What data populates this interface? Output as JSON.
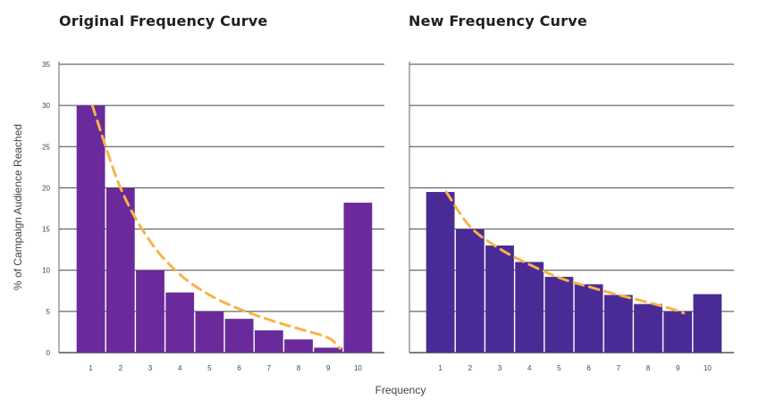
{
  "axes": {
    "ylabel": "% of Campaign Audience Reached",
    "xlabel": "Frequency"
  },
  "chart_data": [
    {
      "type": "bar",
      "title": "Original Frequency Curve",
      "categories": [
        "1",
        "2",
        "3",
        "4",
        "5",
        "6",
        "7",
        "8",
        "9",
        "10"
      ],
      "values": [
        30,
        20,
        10,
        7.3,
        5,
        4.1,
        2.7,
        1.6,
        0.6,
        18.2
      ],
      "trend": [
        30,
        20,
        13.5,
        9.5,
        7,
        5.3,
        4,
        2.9,
        1.8,
        0.5
      ],
      "trend_x": [
        1.05,
        2,
        3,
        4,
        5,
        6,
        7,
        8,
        9,
        9.4
      ],
      "ylim": [
        0,
        35
      ],
      "yticks": [
        0,
        5,
        10,
        15,
        20,
        25,
        30,
        35
      ],
      "xlabel": "Frequency",
      "ylabel": "% of Campaign Audience Reached",
      "grid": true,
      "bar_color": "#6a2a9c",
      "trend_color": "#f7b347"
    },
    {
      "type": "bar",
      "title": "New Frequency Curve",
      "categories": [
        "1",
        "2",
        "3",
        "4",
        "5",
        "6",
        "7",
        "8",
        "9",
        "10"
      ],
      "values": [
        19.5,
        15,
        13,
        11,
        9.2,
        8.3,
        7,
        5.9,
        5,
        7.1
      ],
      "trend": [
        19.5,
        15.3,
        12.6,
        10.7,
        9.1,
        8,
        7,
        6.1,
        5.3,
        4.8
      ],
      "trend_x": [
        1.2,
        2,
        3,
        4,
        5,
        6,
        7,
        8,
        8.8,
        9.2
      ],
      "ylim": [
        0,
        35
      ],
      "yticks": [
        0,
        5,
        10,
        15,
        20,
        25,
        30,
        35
      ],
      "xlabel": "Frequency",
      "ylabel": "% of Campaign Audience Reached",
      "grid": true,
      "bar_color": "#4a2b96",
      "trend_color": "#f7b347"
    }
  ]
}
